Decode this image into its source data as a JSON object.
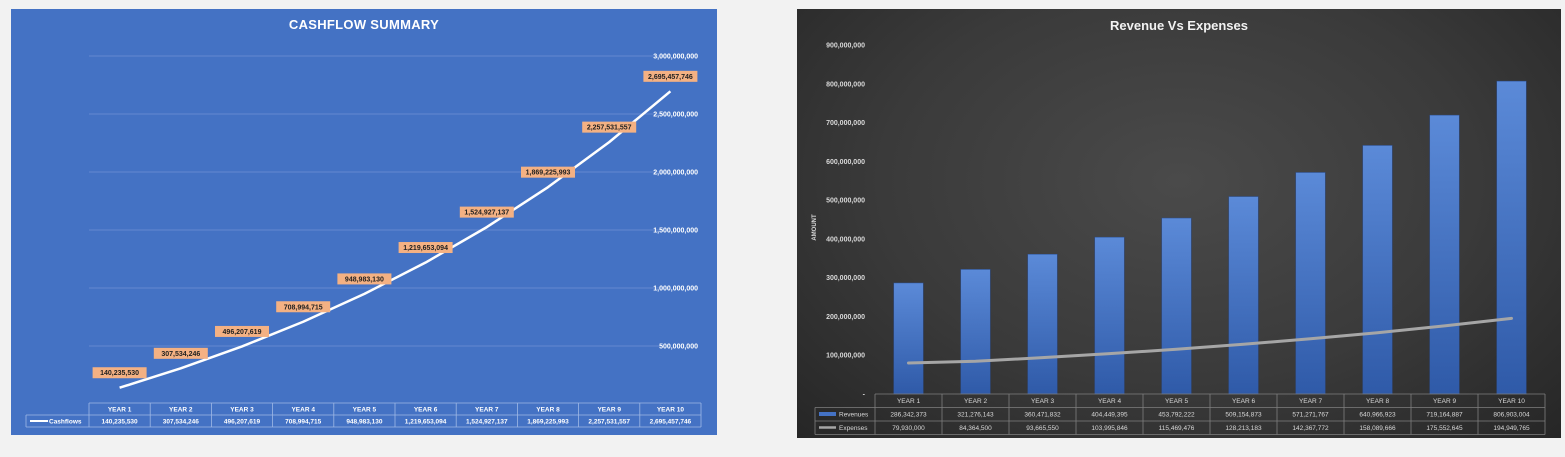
{
  "chart_data": [
    {
      "type": "line",
      "title": "CASHFLOW SUMMARY",
      "categories": [
        "YEAR 1",
        "YEAR 2",
        "YEAR 3",
        "YEAR 4",
        "YEAR 5",
        "YEAR 6",
        "YEAR 7",
        "YEAR 8",
        "YEAR 9",
        "YEAR 10"
      ],
      "series": [
        {
          "name": "Cashflows",
          "values": [
            140235530,
            307534246,
            496207619,
            708994715,
            948983130,
            1219653094,
            1524927137,
            1869225993,
            2257531557,
            2695457746
          ],
          "data_labels": [
            "140,235,530",
            "307,534,246",
            "496,207,619",
            "708,994,715",
            "948,983,130",
            "1,219,653,094",
            "1,524,927,137",
            "1,869,225,993",
            "2,257,531,557",
            "2,695,457,746"
          ],
          "color": "#ffffff"
        }
      ],
      "y_ticks": [
        "500,000,000",
        "1,000,000,000",
        "1,500,000,000",
        "2,000,000,000",
        "2,500,000,000",
        "3,000,000,000"
      ],
      "y_axis_position": "right",
      "ylim": [
        0,
        3000000000
      ],
      "grid": true,
      "data_table": true,
      "colors": {
        "background": "#4472c4",
        "label_fill": "#f4b183",
        "grid": "#6f91d3"
      }
    },
    {
      "type": "bar",
      "title": "Revenue Vs Expenses",
      "ylabel": "AMOUNT",
      "categories": [
        "YEAR 1",
        "YEAR 2",
        "YEAR 3",
        "YEAR 4",
        "YEAR 5",
        "YEAR 6",
        "YEAR 7",
        "YEAR 8",
        "YEAR 9",
        "YEAR 10"
      ],
      "series": [
        {
          "name": "Revenues",
          "type": "bar",
          "values": [
            286342373,
            321276143,
            360471832,
            404449395,
            453792222,
            509154873,
            571271767,
            640966923,
            719164887,
            806903004
          ],
          "labels": [
            "286,342,373",
            "321,276,143",
            "360,471,832",
            "404,449,395",
            "453,792,222",
            "509,154,873",
            "571,271,767",
            "640,966,923",
            "719,164,887",
            "806,903,004"
          ],
          "color": "#4472c4"
        },
        {
          "name": "Expenses",
          "type": "line",
          "values": [
            79930000,
            84364500,
            93665550,
            103995846,
            115469476,
            128213183,
            142367772,
            158089666,
            175552645,
            194949765
          ],
          "labels": [
            "79,930,000",
            "84,364,500",
            "93,665,550",
            "103,995,846",
            "115,469,476",
            "128,213,183",
            "142,367,772",
            "158,089,666",
            "175,552,645",
            "194,949,765"
          ],
          "color": "#a6a6a6"
        }
      ],
      "y_ticks": [
        "-",
        "100,000,000",
        "200,000,000",
        "300,000,000",
        "400,000,000",
        "500,000,000",
        "600,000,000",
        "700,000,000",
        "800,000,000",
        "900,000,000"
      ],
      "ylim": [
        0,
        900000000
      ],
      "grid": false,
      "data_table": true,
      "colors": {
        "background": "#3a3a3a"
      }
    }
  ]
}
